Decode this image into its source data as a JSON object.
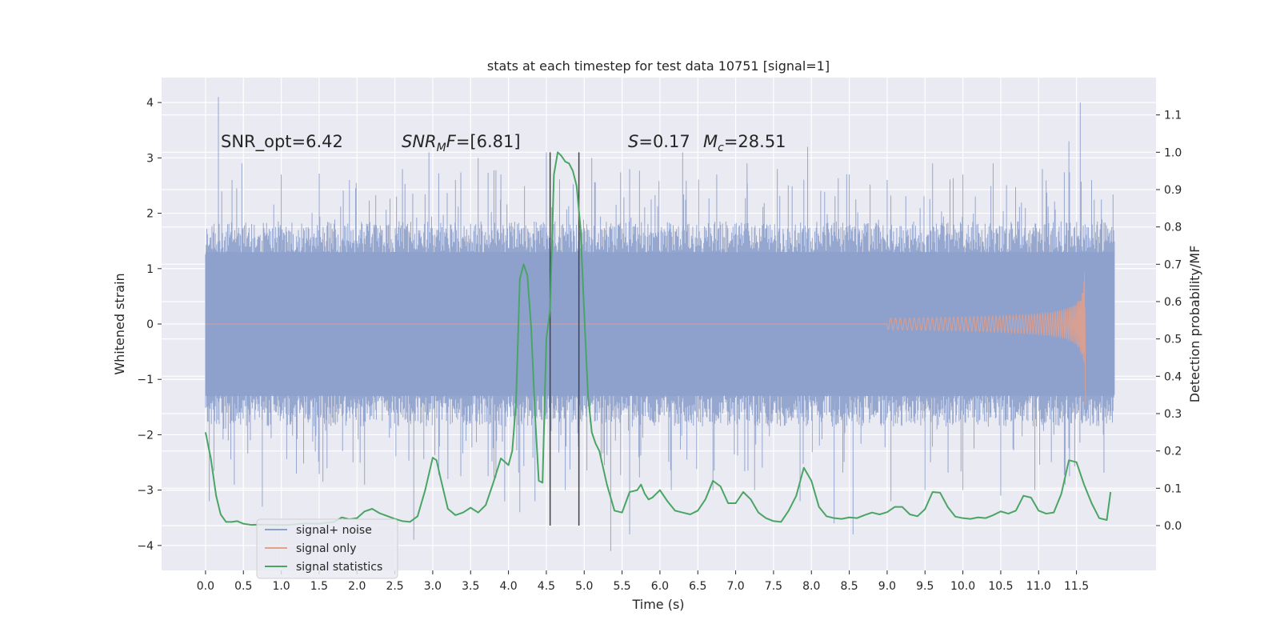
{
  "chart_data": {
    "type": "line",
    "title": "stats at each timestep for test data 10751 [signal=1]",
    "xlabel": "Time (s)",
    "ylabel_left": "Whitened strain",
    "ylabel_right": "Detection probability/MF",
    "xlim": [
      -0.58,
      12.55
    ],
    "ylim_left": [
      -4.45,
      4.45
    ],
    "ylim_right": [
      -0.12,
      1.2
    ],
    "x_ticks": [
      0.0,
      0.5,
      1.0,
      1.5,
      2.0,
      2.5,
      3.0,
      3.5,
      4.0,
      4.5,
      5.0,
      5.5,
      6.0,
      6.5,
      7.0,
      7.5,
      8.0,
      8.5,
      9.0,
      9.5,
      10.0,
      10.5,
      11.0,
      11.5
    ],
    "x_tick_labels": [
      "0.0",
      "0.5",
      "1.0",
      "1.5",
      "2.0",
      "2.5",
      "3.0",
      "3.5",
      "4.0",
      "4.5",
      "5.0",
      "5.5",
      "6.0",
      "6.5",
      "7.0",
      "7.5",
      "8.0",
      "8.5",
      "9.0",
      "9.5",
      "10.0",
      "10.5",
      "11.0",
      "11.5"
    ],
    "y_left_ticks": [
      -4,
      -3,
      -2,
      -1,
      0,
      1,
      2,
      3,
      4
    ],
    "y_left_tick_labels": [
      "−4",
      "−3",
      "−2",
      "−1",
      "0",
      "1",
      "2",
      "3",
      "4"
    ],
    "y_right_ticks": [
      0.0,
      0.1,
      0.2,
      0.3,
      0.4,
      0.5,
      0.6,
      0.7,
      0.8,
      0.9,
      1.0,
      1.1
    ],
    "y_right_tick_labels": [
      "0.0",
      "0.1",
      "0.2",
      "0.3",
      "0.4",
      "0.5",
      "0.6",
      "0.7",
      "0.8",
      "0.9",
      "1.0",
      "1.1"
    ],
    "annotations": {
      "snr_opt": "SNR_opt=6.42",
      "snr_mf_italic": "SNR",
      "snr_mf_sub": "M",
      "snr_mf_italic2": "F",
      "snr_mf_value": "=[6.81]",
      "s_symbol": "S",
      "s_value": "=0.17",
      "mc_symbol": "M",
      "mc_sub": "c",
      "mc_value": "=28.51"
    },
    "vlines": [
      4.55,
      4.93
    ],
    "signal_noise_envelope": {
      "t_range": [
        0.0,
        12.0
      ],
      "core_band": [
        -1.3,
        1.3
      ],
      "typical_peak": [
        -1.9,
        1.9
      ],
      "spikes_up": [
        [
          0.17,
          4.1
        ],
        [
          0.35,
          2.6
        ],
        [
          0.48,
          2.9
        ],
        [
          1.0,
          2.7
        ],
        [
          1.9,
          2.6
        ],
        [
          2.6,
          2.8
        ],
        [
          2.95,
          3.1
        ],
        [
          3.3,
          2.6
        ],
        [
          3.6,
          3.0
        ],
        [
          3.9,
          2.7
        ],
        [
          4.5,
          3.1
        ],
        [
          5.1,
          3.0
        ],
        [
          5.6,
          2.8
        ],
        [
          6.3,
          3.1
        ],
        [
          6.75,
          2.7
        ],
        [
          7.15,
          2.9
        ],
        [
          7.55,
          2.8
        ],
        [
          7.95,
          3.2
        ],
        [
          8.5,
          2.7
        ],
        [
          9.0,
          2.6
        ],
        [
          9.6,
          2.9
        ],
        [
          10.0,
          2.7
        ],
        [
          10.4,
          2.9
        ],
        [
          11.05,
          2.8
        ],
        [
          11.4,
          3.3
        ],
        [
          11.55,
          4.0
        ],
        [
          11.7,
          2.6
        ]
      ],
      "spikes_down": [
        [
          0.05,
          -3.2
        ],
        [
          0.38,
          -2.9
        ],
        [
          0.75,
          -3.3
        ],
        [
          1.2,
          -2.7
        ],
        [
          1.55,
          -2.85
        ],
        [
          2.1,
          -2.9
        ],
        [
          2.75,
          -3.9
        ],
        [
          3.2,
          -2.8
        ],
        [
          3.95,
          -3.2
        ],
        [
          4.15,
          -3.4
        ],
        [
          4.35,
          -3.2
        ],
        [
          4.75,
          -3.0
        ],
        [
          5.35,
          -4.1
        ],
        [
          5.6,
          -3.8
        ],
        [
          6.15,
          -3.0
        ],
        [
          6.7,
          -3.0
        ],
        [
          7.25,
          -3.0
        ],
        [
          7.85,
          -3.2
        ],
        [
          8.3,
          -3.6
        ],
        [
          8.55,
          -3.8
        ],
        [
          9.05,
          -3.2
        ],
        [
          9.5,
          -3.0
        ],
        [
          10.0,
          -3.0
        ],
        [
          10.5,
          -3.1
        ],
        [
          10.95,
          -3.0
        ],
        [
          11.35,
          -2.9
        ]
      ]
    },
    "signal_only": {
      "t_start": 9.0,
      "t_end": 11.62,
      "peak_amplitude": 1.6,
      "final_lower": -1.45
    },
    "series": [
      {
        "name": "signal+ noise",
        "color": "#8da0cb"
      },
      {
        "name": "signal only",
        "color": "#e5a088"
      },
      {
        "name": "signal statistics",
        "color": "#4aa564",
        "x": [
          0.0,
          0.07,
          0.14,
          0.2,
          0.27,
          0.35,
          0.42,
          0.5,
          0.6,
          0.75,
          0.9,
          1.1,
          1.3,
          1.5,
          1.7,
          1.8,
          1.9,
          2.0,
          2.1,
          2.2,
          2.3,
          2.5,
          2.6,
          2.7,
          2.8,
          2.9,
          3.0,
          3.05,
          3.1,
          3.2,
          3.3,
          3.4,
          3.5,
          3.6,
          3.7,
          3.8,
          3.9,
          4.0,
          4.05,
          4.1,
          4.15,
          4.2,
          4.25,
          4.3,
          4.35,
          4.4,
          4.45,
          4.5,
          4.55,
          4.6,
          4.65,
          4.7,
          4.75,
          4.8,
          4.85,
          4.9,
          4.95,
          5.0,
          5.05,
          5.1,
          5.15,
          5.2,
          5.3,
          5.4,
          5.5,
          5.6,
          5.7,
          5.75,
          5.8,
          5.85,
          5.9,
          6.0,
          6.1,
          6.2,
          6.3,
          6.4,
          6.5,
          6.6,
          6.7,
          6.8,
          6.9,
          7.0,
          7.1,
          7.2,
          7.3,
          7.4,
          7.5,
          7.6,
          7.7,
          7.8,
          7.9,
          8.0,
          8.1,
          8.2,
          8.3,
          8.4,
          8.5,
          8.6,
          8.7,
          8.8,
          8.9,
          9.0,
          9.1,
          9.2,
          9.3,
          9.4,
          9.5,
          9.6,
          9.7,
          9.8,
          9.9,
          10.0,
          10.1,
          10.2,
          10.3,
          10.4,
          10.5,
          10.6,
          10.7,
          10.8,
          10.9,
          11.0,
          11.1,
          11.2,
          11.3,
          11.4,
          11.5,
          11.6,
          11.7,
          11.8,
          11.9,
          11.95
        ],
        "values": [
          0.25,
          0.18,
          0.08,
          0.03,
          0.01,
          0.01,
          0.012,
          0.005,
          0.002,
          0.003,
          0.002,
          0.002,
          0.006,
          0.005,
          0.01,
          0.022,
          0.017,
          0.02,
          0.038,
          0.045,
          0.033,
          0.018,
          0.012,
          0.01,
          0.025,
          0.095,
          0.182,
          0.175,
          0.13,
          0.045,
          0.028,
          0.035,
          0.048,
          0.035,
          0.055,
          0.115,
          0.18,
          0.162,
          0.2,
          0.33,
          0.66,
          0.7,
          0.67,
          0.53,
          0.3,
          0.12,
          0.115,
          0.5,
          0.58,
          0.94,
          1.0,
          0.99,
          0.975,
          0.97,
          0.95,
          0.91,
          0.8,
          0.57,
          0.35,
          0.25,
          0.22,
          0.2,
          0.11,
          0.04,
          0.035,
          0.09,
          0.095,
          0.11,
          0.085,
          0.07,
          0.075,
          0.095,
          0.065,
          0.04,
          0.035,
          0.03,
          0.04,
          0.07,
          0.12,
          0.105,
          0.06,
          0.06,
          0.09,
          0.07,
          0.035,
          0.02,
          0.012,
          0.01,
          0.04,
          0.08,
          0.155,
          0.12,
          0.05,
          0.025,
          0.02,
          0.018,
          0.022,
          0.02,
          0.028,
          0.035,
          0.03,
          0.036,
          0.05,
          0.05,
          0.03,
          0.025,
          0.044,
          0.09,
          0.088,
          0.05,
          0.024,
          0.02,
          0.018,
          0.022,
          0.02,
          0.028,
          0.038,
          0.032,
          0.04,
          0.08,
          0.075,
          0.04,
          0.032,
          0.035,
          0.085,
          0.175,
          0.17,
          0.11,
          0.06,
          0.02,
          0.015,
          0.09
        ]
      }
    ],
    "legend_position": "lower-left",
    "grid": true
  }
}
